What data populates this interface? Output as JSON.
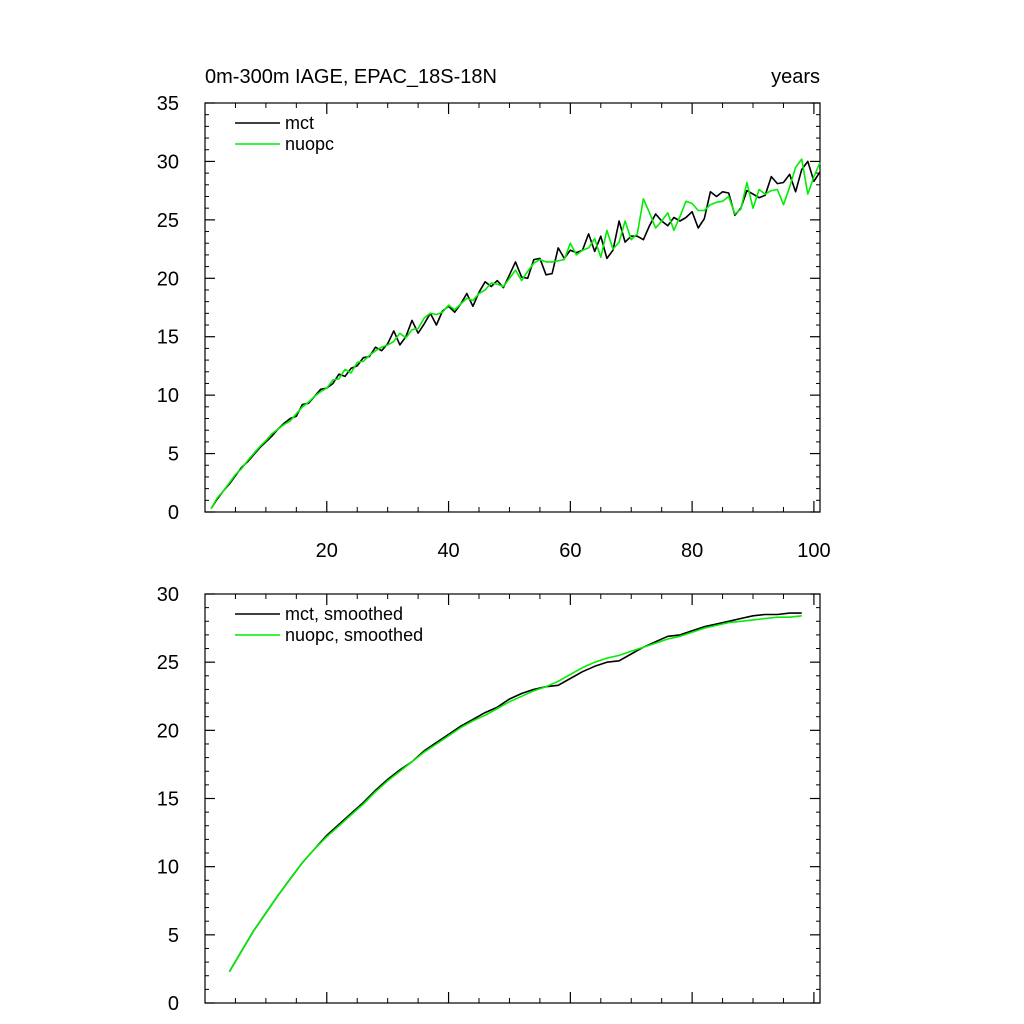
{
  "chart_data": [
    {
      "type": "line",
      "title": "0m-300m IAGE, EPAC_18S-18N",
      "title_right": "years",
      "xlim": [
        0,
        101
      ],
      "ylim": [
        0,
        35
      ],
      "x_major_ticks": [
        20,
        40,
        60,
        80,
        100
      ],
      "x_minor_step": 5,
      "y_major_ticks": [
        0,
        5,
        10,
        15,
        20,
        25,
        30,
        35
      ],
      "y_minor_step": 1,
      "show_x_tick_labels": true,
      "legend_position": "top-left",
      "series": [
        {
          "name": "mct",
          "color": "#000000",
          "x": [
            1,
            2,
            3,
            4,
            5,
            6,
            7,
            8,
            9,
            10,
            11,
            12,
            13,
            14,
            15,
            16,
            17,
            18,
            19,
            20,
            21,
            22,
            23,
            24,
            25,
            26,
            27,
            28,
            29,
            30,
            31,
            32,
            33,
            34,
            35,
            36,
            37,
            38,
            39,
            40,
            41,
            42,
            43,
            44,
            45,
            46,
            47,
            48,
            49,
            50,
            51,
            52,
            53,
            54,
            55,
            56,
            57,
            58,
            59,
            60,
            61,
            62,
            63,
            64,
            65,
            66,
            67,
            68,
            69,
            70,
            71,
            72,
            73,
            74,
            75,
            76,
            77,
            78,
            79,
            80,
            81,
            82,
            83,
            84,
            85,
            86,
            87,
            88,
            89,
            90,
            91,
            92,
            93,
            94,
            95,
            96,
            97,
            98,
            99,
            100,
            101
          ],
          "y": [
            0.3,
            1.1,
            1.8,
            2.4,
            3.1,
            3.8,
            4.3,
            4.9,
            5.5,
            6.0,
            6.5,
            7.1,
            7.6,
            8.0,
            8.2,
            9.2,
            9.3,
            9.9,
            10.5,
            10.6,
            11.0,
            11.8,
            11.6,
            12.3,
            12.5,
            13.2,
            13.3,
            14.1,
            13.8,
            14.4,
            15.5,
            14.3,
            15.0,
            16.4,
            15.3,
            16.1,
            17.0,
            16.0,
            17.2,
            17.6,
            17.1,
            17.8,
            18.7,
            17.6,
            18.8,
            19.7,
            19.3,
            19.8,
            19.2,
            20.3,
            21.4,
            20.1,
            20.0,
            21.6,
            21.7,
            20.3,
            20.4,
            22.6,
            21.7,
            22.4,
            22.2,
            22.4,
            23.8,
            22.3,
            23.6,
            21.7,
            22.4,
            24.9,
            23.1,
            23.6,
            23.6,
            23.3,
            24.5,
            25.5,
            24.9,
            24.5,
            25.2,
            24.9,
            25.2,
            25.7,
            24.3,
            25.1,
            27.4,
            27.0,
            27.4,
            27.3,
            25.4,
            26.0,
            27.5,
            27.2,
            26.9,
            27.1,
            28.7,
            28.1,
            28.2,
            28.9,
            27.4,
            29.3,
            30.0,
            28.3,
            29.1
          ]
        },
        {
          "name": "nuopc",
          "color": "#00ee00",
          "x": [
            1,
            2,
            3,
            4,
            5,
            6,
            7,
            8,
            9,
            10,
            11,
            12,
            13,
            14,
            15,
            16,
            17,
            18,
            19,
            20,
            21,
            22,
            23,
            24,
            25,
            26,
            27,
            28,
            29,
            30,
            31,
            32,
            33,
            34,
            35,
            36,
            37,
            38,
            39,
            40,
            41,
            42,
            43,
            44,
            45,
            46,
            47,
            48,
            49,
            50,
            51,
            52,
            53,
            54,
            55,
            56,
            57,
            58,
            59,
            60,
            61,
            62,
            63,
            64,
            65,
            66,
            67,
            68,
            69,
            70,
            71,
            72,
            73,
            74,
            75,
            76,
            77,
            78,
            79,
            80,
            81,
            82,
            83,
            84,
            85,
            86,
            87,
            88,
            89,
            90,
            91,
            92,
            93,
            94,
            95,
            96,
            97,
            98,
            99,
            100,
            101
          ],
          "y": [
            0.3,
            1.2,
            1.8,
            2.5,
            3.2,
            3.7,
            4.4,
            5.0,
            5.6,
            6.1,
            6.7,
            7.1,
            7.5,
            7.8,
            8.4,
            9.0,
            9.4,
            9.9,
            10.3,
            10.6,
            11.3,
            11.4,
            12.2,
            11.9,
            12.8,
            12.9,
            13.4,
            13.8,
            14.1,
            14.3,
            14.6,
            15.3,
            14.9,
            15.6,
            15.7,
            16.6,
            17.0,
            16.9,
            17.1,
            17.7,
            17.3,
            17.8,
            18.3,
            18.1,
            18.7,
            19.0,
            19.6,
            19.5,
            19.3,
            20.0,
            20.7,
            19.8,
            20.6,
            21.3,
            21.6,
            21.4,
            21.4,
            21.5,
            21.6,
            23.0,
            22.0,
            22.4,
            22.6,
            23.4,
            21.8,
            24.1,
            22.5,
            23.1,
            24.9,
            23.3,
            23.8,
            26.8,
            25.6,
            24.3,
            24.9,
            25.6,
            24.1,
            25.3,
            26.6,
            26.4,
            25.8,
            25.8,
            26.3,
            26.5,
            26.6,
            27.0,
            25.5,
            25.9,
            28.2,
            26.0,
            27.6,
            27.2,
            27.5,
            27.6,
            26.3,
            27.8,
            29.5,
            30.2,
            27.2,
            28.7,
            29.9
          ]
        }
      ]
    },
    {
      "type": "line",
      "title": "",
      "xlim": [
        0,
        101
      ],
      "ylim": [
        0,
        30
      ],
      "x_major_ticks": [
        20,
        40,
        60,
        80,
        100
      ],
      "x_minor_step": 5,
      "y_major_ticks": [
        0,
        5,
        10,
        15,
        20,
        25,
        30
      ],
      "y_minor_step": 1,
      "show_x_tick_labels": false,
      "legend_position": "top-left",
      "series": [
        {
          "name": "mct, smoothed",
          "color": "#000000",
          "x": [
            4,
            6,
            8,
            10,
            12,
            14,
            16,
            18,
            20,
            22,
            24,
            26,
            28,
            30,
            32,
            34,
            36,
            38,
            40,
            42,
            44,
            46,
            48,
            50,
            52,
            54,
            56,
            58,
            60,
            62,
            64,
            66,
            68,
            70,
            72,
            74,
            76,
            78,
            80,
            82,
            84,
            86,
            88,
            90,
            92,
            94,
            96,
            98
          ],
          "y": [
            2.3,
            3.8,
            5.3,
            6.6,
            7.9,
            9.1,
            10.3,
            11.3,
            12.3,
            13.1,
            13.9,
            14.7,
            15.6,
            16.4,
            17.1,
            17.7,
            18.5,
            19.1,
            19.7,
            20.3,
            20.8,
            21.3,
            21.7,
            22.3,
            22.7,
            23.0,
            23.2,
            23.3,
            23.8,
            24.3,
            24.7,
            25.0,
            25.1,
            25.6,
            26.1,
            26.5,
            26.9,
            27.0,
            27.3,
            27.6,
            27.8,
            28.0,
            28.2,
            28.4,
            28.5,
            28.5,
            28.6,
            28.6
          ]
        },
        {
          "name": "nuopc, smoothed",
          "color": "#00ee00",
          "x": [
            4,
            6,
            8,
            10,
            12,
            14,
            16,
            18,
            20,
            22,
            24,
            26,
            28,
            30,
            32,
            34,
            36,
            38,
            40,
            42,
            44,
            46,
            48,
            50,
            52,
            54,
            56,
            58,
            60,
            62,
            64,
            66,
            68,
            70,
            72,
            74,
            76,
            78,
            80,
            82,
            84,
            86,
            88,
            90,
            92,
            94,
            96,
            98
          ],
          "y": [
            2.3,
            3.8,
            5.3,
            6.6,
            7.9,
            9.1,
            10.3,
            11.3,
            12.2,
            13.0,
            13.8,
            14.6,
            15.5,
            16.3,
            17.0,
            17.7,
            18.4,
            19.0,
            19.6,
            20.2,
            20.7,
            21.1,
            21.6,
            22.1,
            22.5,
            22.9,
            23.2,
            23.6,
            24.1,
            24.6,
            25.0,
            25.3,
            25.5,
            25.8,
            26.1,
            26.4,
            26.7,
            26.9,
            27.2,
            27.5,
            27.7,
            27.9,
            28.0,
            28.1,
            28.2,
            28.3,
            28.3,
            28.4
          ]
        }
      ]
    }
  ]
}
